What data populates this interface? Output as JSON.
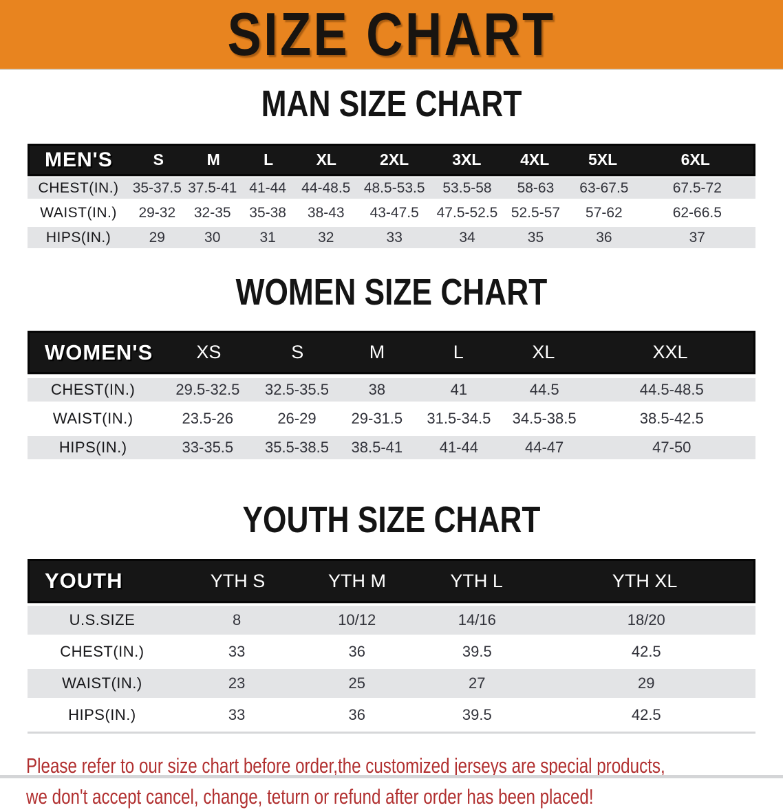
{
  "banner": {
    "title": "SIZE CHART"
  },
  "colors": {
    "banner_bg": "#E8841F",
    "header_bar": "#161616",
    "row_gray": "#E3E4E6",
    "disclaimer_text": "#B13030"
  },
  "sections": {
    "men": {
      "heading": "MAN SIZE CHART",
      "table": {
        "header": [
          "MEN'S",
          "S",
          "M",
          "L",
          "XL",
          "2XL",
          "3XL",
          "4XL",
          "5XL",
          "6XL"
        ],
        "rows": [
          {
            "label": "CHEST(IN.)",
            "values": [
              "35-37.5",
              "37.5-41",
              "41-44",
              "44-48.5",
              "48.5-53.5",
              "53.5-58",
              "58-63",
              "63-67.5",
              "67.5-72"
            ]
          },
          {
            "label": "WAIST(IN.)",
            "values": [
              "29-32",
              "32-35",
              "35-38",
              "38-43",
              "43-47.5",
              "47.5-52.5",
              "52.5-57",
              "57-62",
              "62-66.5"
            ]
          },
          {
            "label": "HIPS(IN.)",
            "values": [
              "29",
              "30",
              "31",
              "32",
              "33",
              "34",
              "35",
              "36",
              "37"
            ]
          }
        ]
      }
    },
    "women": {
      "heading": "WOMEN SIZE CHART",
      "table": {
        "header": [
          "WOMEN'S",
          "XS",
          "S",
          "M",
          "L",
          "XL",
          "XXL"
        ],
        "rows": [
          {
            "label": "CHEST(IN.)",
            "values": [
              "29.5-32.5",
              "32.5-35.5",
              "38",
              "41",
              "44.5",
              "44.5-48.5"
            ]
          },
          {
            "label": "WAIST(IN.)",
            "values": [
              "23.5-26",
              "26-29",
              "29-31.5",
              "31.5-34.5",
              "34.5-38.5",
              "38.5-42.5"
            ]
          },
          {
            "label": "HIPS(IN.)",
            "values": [
              "33-35.5",
              "35.5-38.5",
              "38.5-41",
              "41-44",
              "44-47",
              "47-50"
            ]
          }
        ]
      }
    },
    "youth": {
      "heading": "YOUTH SIZE CHART",
      "table": {
        "header": [
          "YOUTH",
          "YTH S",
          "YTH M",
          "YTH L",
          "YTH XL"
        ],
        "rows": [
          {
            "label": "U.S.SIZE",
            "values": [
              "8",
              "10/12",
              "14/16",
              "18/20"
            ]
          },
          {
            "label": "CHEST(IN.)",
            "values": [
              "33",
              "36",
              "39.5",
              "42.5"
            ]
          },
          {
            "label": "WAIST(IN.)",
            "values": [
              "23",
              "25",
              "27",
              "29"
            ]
          },
          {
            "label": "HIPS(IN.)",
            "values": [
              "33",
              "36",
              "39.5",
              "42.5"
            ]
          }
        ]
      }
    }
  },
  "disclaimer": {
    "line1": "Please refer to our size chart before order,the customized jerseys are special products,",
    "line2": "we don't accept cancel, change, teturn or refund after order has been placed!"
  }
}
